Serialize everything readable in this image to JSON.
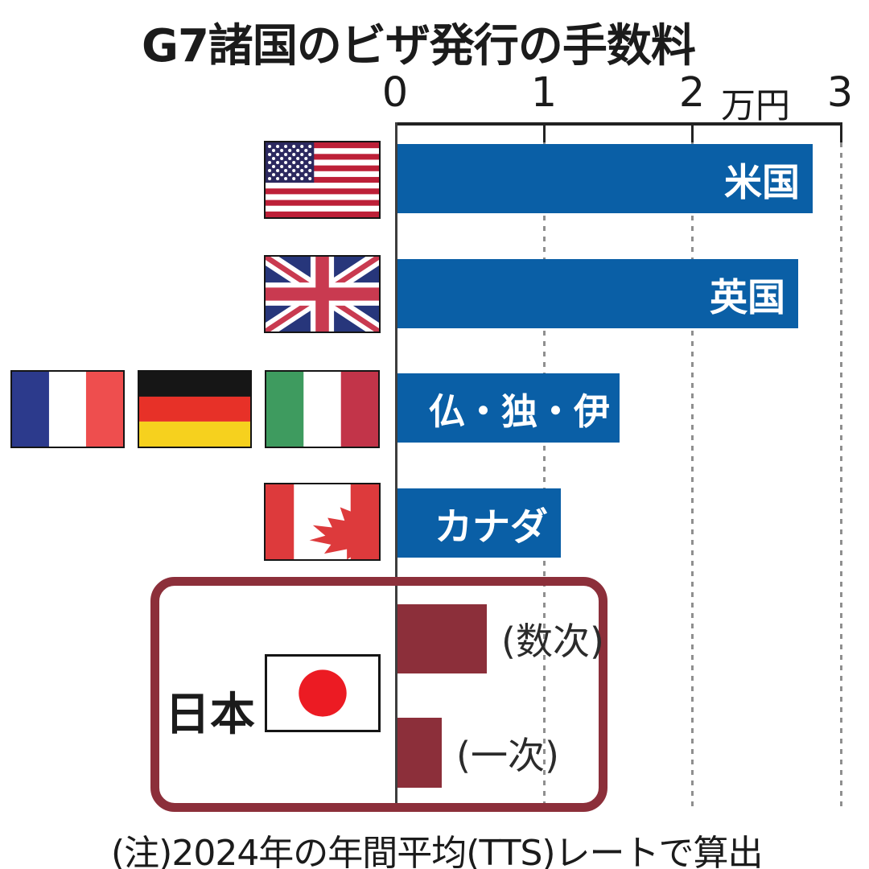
{
  "title": "G7諸国のビザ発行の手数料",
  "note": "(注)2024年の年間平均(TTS)レートで算出",
  "axis": {
    "ticks": [
      "0",
      "1",
      "2",
      "3"
    ],
    "unit": "万円"
  },
  "japan_group_label": "日本",
  "colors": {
    "bar_blue": "#0A5FA6",
    "bar_dark_red": "#8C2F3A",
    "japan_box_border": "#8C2F3A",
    "grid_gray": "#8f8f8f",
    "text_black": "#1b1b1b"
  },
  "chart_data": {
    "type": "bar",
    "orientation": "horizontal",
    "title": "G7諸国のビザ発行の手数料",
    "x_axis_unit": "万円",
    "xlim": [
      0,
      3
    ],
    "x_ticks": [
      0,
      1,
      2,
      3
    ],
    "grid": "dashed vertical lines at 1, 2, 3",
    "note": "(注)2024年の年間平均(TTS)レートで算出",
    "categories": [
      "米国",
      "英国",
      "仏・独・伊",
      "カナダ",
      "日本(数次)",
      "日本(一次)"
    ],
    "values": [
      2.8,
      2.7,
      1.5,
      1.1,
      0.6,
      0.3
    ],
    "bars": [
      {
        "label": "米国",
        "country": "United States",
        "value": 2.8,
        "color": "#0A5FA6",
        "label_position": "inside"
      },
      {
        "label": "英国",
        "country": "United Kingdom",
        "value": 2.7,
        "color": "#0A5FA6",
        "label_position": "inside"
      },
      {
        "label": "仏・独・伊",
        "country": "France / Germany / Italy",
        "value": 1.5,
        "color": "#0A5FA6",
        "label_position": "inside"
      },
      {
        "label": "カナダ",
        "country": "Canada",
        "value": 1.1,
        "color": "#0A5FA6",
        "label_position": "inside"
      },
      {
        "label": "(数次)",
        "country": "Japan (multiple-entry)",
        "value": 0.6,
        "color": "#8C2F3A",
        "label_position": "outside"
      },
      {
        "label": "(一次)",
        "country": "Japan (single-entry)",
        "value": 0.3,
        "color": "#8C2F3A",
        "label_position": "outside"
      }
    ],
    "flags_shown": [
      "United States",
      "United Kingdom",
      "France",
      "Germany",
      "Italy",
      "Canada",
      "Japan"
    ]
  }
}
